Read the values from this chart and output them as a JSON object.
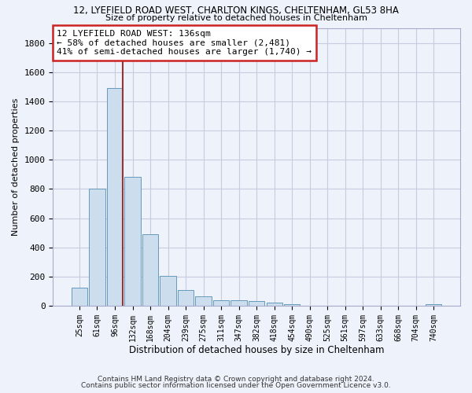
{
  "title1": "12, LYEFIELD ROAD WEST, CHARLTON KINGS, CHELTENHAM, GL53 8HA",
  "title2": "Size of property relative to detached houses in Cheltenham",
  "xlabel": "Distribution of detached houses by size in Cheltenham",
  "ylabel": "Number of detached properties",
  "categories": [
    "25sqm",
    "61sqm",
    "96sqm",
    "132sqm",
    "168sqm",
    "204sqm",
    "239sqm",
    "275sqm",
    "311sqm",
    "347sqm",
    "382sqm",
    "418sqm",
    "454sqm",
    "490sqm",
    "525sqm",
    "561sqm",
    "597sqm",
    "633sqm",
    "668sqm",
    "704sqm",
    "740sqm"
  ],
  "values": [
    125,
    800,
    1490,
    880,
    490,
    205,
    105,
    65,
    40,
    35,
    30,
    20,
    10,
    0,
    0,
    0,
    0,
    0,
    0,
    0,
    10
  ],
  "bar_color": "#ccdded",
  "bar_edge_color": "#6699bb",
  "highlight_line_color": "#993333",
  "highlight_bar_index": 2,
  "annotation_text": "12 LYEFIELD ROAD WEST: 136sqm\n← 58% of detached houses are smaller (2,481)\n41% of semi-detached houses are larger (1,740) →",
  "annotation_box_color": "#ffffff",
  "annotation_box_edge_color": "#cc2222",
  "background_color": "#eef2fa",
  "grid_color": "#c8cce0",
  "footer1": "Contains HM Land Registry data © Crown copyright and database right 2024.",
  "footer2": "Contains public sector information licensed under the Open Government Licence v3.0.",
  "ylim": [
    0,
    1900
  ],
  "yticks": [
    0,
    200,
    400,
    600,
    800,
    1000,
    1200,
    1400,
    1600,
    1800
  ]
}
